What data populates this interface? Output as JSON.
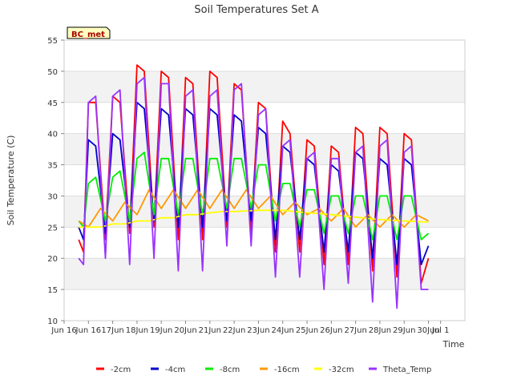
{
  "chart_data": {
    "type": "line",
    "title": "Soil Temperatures Set A",
    "xlabel": "Time",
    "ylabel": "Soil Temperature (C)",
    "site_badge": "BC_met",
    "xlim": [
      15.0,
      31.5
    ],
    "ylim": [
      10,
      55
    ],
    "xticks": [
      {
        "value": 15.0,
        "label": "Jun 16"
      },
      {
        "value": 16.0,
        "label": "Jun 16"
      },
      {
        "value": 17.0,
        "label": "17Jun"
      },
      {
        "value": 18.0,
        "label": "18Jun"
      },
      {
        "value": 19.0,
        "label": "19Jun"
      },
      {
        "value": 20.0,
        "label": "20Jun"
      },
      {
        "value": 21.0,
        "label": "21Jun"
      },
      {
        "value": 22.0,
        "label": "22Jun"
      },
      {
        "value": 23.0,
        "label": "23Jun"
      },
      {
        "value": 24.0,
        "label": "24Jun"
      },
      {
        "value": 25.0,
        "label": "25Jun"
      },
      {
        "value": 26.0,
        "label": "26Jun"
      },
      {
        "value": 27.0,
        "label": "27Jun"
      },
      {
        "value": 28.0,
        "label": "28Jun"
      },
      {
        "value": 29.0,
        "label": "29Jun"
      },
      {
        "value": 30.0,
        "label": "30Jun"
      },
      {
        "value": 30.5,
        "label": "Jul 1"
      }
    ],
    "yticks": [
      10,
      15,
      20,
      25,
      30,
      35,
      40,
      45,
      50,
      55
    ],
    "grid": true,
    "legend_position": "bottom",
    "series": [
      {
        "name": "-2cm",
        "color": "#ff0000",
        "x": [
          15.6,
          15.8,
          16.0,
          16.3,
          16.7,
          17.0,
          17.3,
          17.7,
          18.0,
          18.3,
          18.7,
          19.0,
          19.3,
          19.7,
          20.0,
          20.3,
          20.7,
          21.0,
          21.3,
          21.7,
          22.0,
          22.3,
          22.7,
          23.0,
          23.3,
          23.7,
          24.0,
          24.3,
          24.7,
          25.0,
          25.3,
          25.7,
          26.0,
          26.3,
          26.7,
          27.0,
          27.3,
          27.7,
          28.0,
          28.3,
          28.7,
          29.0,
          29.3,
          29.7,
          30.0
        ],
        "y": [
          23,
          21,
          45,
          45,
          23,
          46,
          45,
          24,
          51,
          50,
          25,
          50,
          49,
          23,
          49,
          48,
          23,
          50,
          49,
          25,
          48,
          47,
          24,
          45,
          44,
          21,
          42,
          40,
          21,
          39,
          38,
          19,
          38,
          37,
          19,
          41,
          40,
          18,
          41,
          40,
          17,
          40,
          39,
          16,
          20
        ]
      },
      {
        "name": "-4cm",
        "color": "#0000cc",
        "x": [
          15.6,
          15.8,
          16.0,
          16.3,
          16.7,
          17.0,
          17.3,
          17.7,
          18.0,
          18.3,
          18.7,
          19.0,
          19.3,
          19.7,
          20.0,
          20.3,
          20.7,
          21.0,
          21.3,
          21.7,
          22.0,
          22.3,
          22.7,
          23.0,
          23.3,
          23.7,
          24.0,
          24.3,
          24.7,
          25.0,
          25.3,
          25.7,
          26.0,
          26.3,
          26.7,
          27.0,
          27.3,
          27.7,
          28.0,
          28.3,
          28.7,
          29.0,
          29.3,
          29.7,
          30.0
        ],
        "y": [
          25,
          23,
          39,
          38,
          24,
          40,
          39,
          25,
          45,
          44,
          26,
          44,
          43,
          25,
          44,
          43,
          25,
          44,
          43,
          26,
          43,
          42,
          26,
          41,
          40,
          23,
          38,
          37,
          23,
          36,
          35,
          21,
          35,
          34,
          21,
          37,
          36,
          20,
          36,
          35,
          19,
          36,
          35,
          19,
          22
        ]
      },
      {
        "name": "-8cm",
        "color": "#00ee00",
        "x": [
          15.6,
          15.8,
          16.0,
          16.3,
          16.7,
          17.0,
          17.3,
          17.7,
          18.0,
          18.3,
          18.7,
          19.0,
          19.3,
          19.7,
          20.0,
          20.3,
          20.7,
          21.0,
          21.3,
          21.7,
          22.0,
          22.3,
          22.7,
          23.0,
          23.3,
          23.7,
          24.0,
          24.3,
          24.7,
          25.0,
          25.3,
          25.7,
          26.0,
          26.3,
          26.7,
          27.0,
          27.3,
          27.7,
          28.0,
          28.3,
          28.7,
          29.0,
          29.3,
          29.7,
          30.0
        ],
        "y": [
          26,
          25,
          32,
          33,
          26,
          33,
          34,
          26,
          36,
          37,
          27,
          36,
          36,
          27,
          36,
          36,
          27,
          36,
          36,
          28,
          36,
          36,
          28,
          35,
          35,
          26,
          32,
          32,
          25,
          31,
          31,
          24,
          30,
          30,
          24,
          30,
          30,
          23,
          30,
          30,
          23,
          30,
          30,
          23,
          24
        ]
      },
      {
        "name": "-16cm",
        "color": "#ff9900",
        "x": [
          15.6,
          16.0,
          16.5,
          17.0,
          17.5,
          18.0,
          18.5,
          19.0,
          19.5,
          20.0,
          20.5,
          21.0,
          21.5,
          22.0,
          22.5,
          23.0,
          23.5,
          24.0,
          24.5,
          25.0,
          25.5,
          26.0,
          26.5,
          27.0,
          27.5,
          28.0,
          28.5,
          29.0,
          29.5,
          30.0
        ],
        "y": [
          26,
          25,
          28,
          26,
          29,
          27,
          31,
          28,
          31,
          28,
          31,
          28,
          31,
          28,
          31,
          28,
          30,
          27,
          29,
          27,
          28,
          26,
          28,
          25,
          27,
          25,
          27,
          25,
          27,
          26
        ]
      },
      {
        "name": "-32cm",
        "color": "#ffff00",
        "x": [
          15.6,
          16.0,
          16.5,
          17.0,
          17.5,
          18.0,
          18.5,
          19.0,
          19.5,
          20.0,
          20.5,
          21.0,
          21.5,
          22.0,
          22.5,
          23.0,
          23.5,
          24.0,
          24.5,
          25.0,
          25.5,
          26.0,
          26.5,
          27.0,
          27.5,
          28.0,
          28.5,
          29.0,
          29.5,
          30.0
        ],
        "y": [
          25,
          25,
          25,
          25.5,
          25.5,
          26,
          26,
          26.5,
          26.5,
          27,
          27,
          27.3,
          27.5,
          27.5,
          27.6,
          27.7,
          27.7,
          27.7,
          27.5,
          27.3,
          27.2,
          27,
          26.8,
          26.6,
          26.4,
          26.2,
          26.1,
          26,
          25.9,
          25.8
        ]
      },
      {
        "name": "Theta_Temp",
        "color": "#9933ff",
        "x": [
          15.6,
          15.8,
          16.0,
          16.3,
          16.7,
          17.0,
          17.3,
          17.7,
          18.0,
          18.3,
          18.7,
          19.0,
          19.3,
          19.7,
          20.0,
          20.3,
          20.7,
          21.0,
          21.3,
          21.7,
          22.0,
          22.3,
          22.7,
          23.0,
          23.3,
          23.7,
          24.0,
          24.3,
          24.7,
          25.0,
          25.3,
          25.7,
          26.0,
          26.3,
          26.7,
          27.0,
          27.3,
          27.7,
          28.0,
          28.3,
          28.7,
          29.0,
          29.3,
          29.7,
          30.0
        ],
        "y": [
          20,
          19,
          45,
          46,
          20,
          46,
          47,
          19,
          48,
          49,
          20,
          48,
          48,
          18,
          46,
          47,
          18,
          46,
          47,
          22,
          47,
          48,
          22,
          43,
          44,
          17,
          38,
          39,
          17,
          36,
          37,
          15,
          36,
          36,
          16,
          37,
          38,
          13,
          38,
          39,
          12,
          37,
          38,
          15,
          15
        ]
      }
    ]
  }
}
